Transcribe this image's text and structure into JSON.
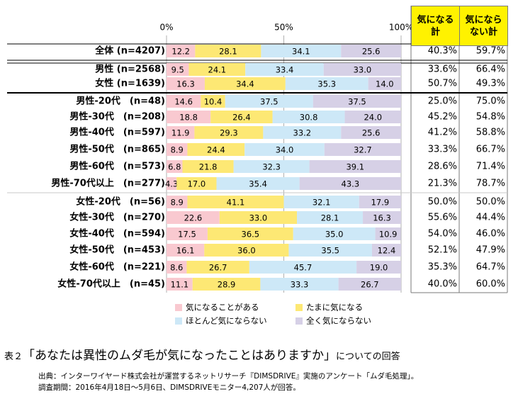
{
  "chart_data": {
    "type": "bar",
    "orientation": "horizontal",
    "stacked": true,
    "percent_stacked": true,
    "axis_ticks": [
      "0%",
      "50%",
      "100%"
    ],
    "xlim": [
      0,
      100
    ],
    "categories": [
      "全体 (n=4207)",
      "男性 (n=2568)",
      "女性 (n=1639)",
      "男性-20代　(n=48)",
      "男性-30代　(n=208)",
      "男性-40代　(n=597)",
      "男性-50代　(n=865)",
      "男性-60代　(n=573)",
      "男性-70代以上　(n=277)",
      "女性-20代　(n=56)",
      "女性-30代　(n=270)",
      "女性-40代　(n=594)",
      "女性-50代　(n=453)",
      "女性-60代　(n=221)",
      "女性-70代以上　(n=45)"
    ],
    "series": [
      {
        "name": "気になることがある",
        "color": "#f9c9d0",
        "values": [
          12.2,
          9.5,
          16.3,
          14.6,
          18.8,
          11.9,
          8.9,
          6.8,
          4.3,
          8.9,
          22.6,
          17.5,
          16.1,
          8.6,
          11.1
        ]
      },
      {
        "name": "たまに気になる",
        "color": "#fde874",
        "values": [
          28.1,
          24.1,
          34.4,
          10.4,
          26.4,
          29.3,
          24.4,
          21.8,
          17.0,
          41.1,
          33.0,
          36.5,
          36.0,
          26.7,
          28.9
        ]
      },
      {
        "name": "ほとんど気にならない",
        "color": "#cde8f7",
        "values": [
          34.1,
          33.4,
          35.3,
          37.5,
          30.8,
          33.2,
          34.0,
          32.3,
          35.4,
          32.1,
          28.1,
          35.0,
          35.5,
          45.7,
          33.3
        ]
      },
      {
        "name": "全く気にならない",
        "color": "#d6d0e6",
        "values": [
          25.6,
          33.0,
          14.0,
          37.5,
          24.0,
          25.6,
          32.7,
          39.1,
          43.3,
          17.9,
          16.3,
          10.9,
          12.4,
          19.0,
          26.7
        ]
      }
    ],
    "table_columns": [
      {
        "header": "気になる\n計",
        "values": [
          "40.3%",
          "33.6%",
          "50.7%",
          "25.0%",
          "45.2%",
          "41.2%",
          "33.3%",
          "28.6%",
          "21.3%",
          "50.0%",
          "55.6%",
          "54.0%",
          "52.1%",
          "35.3%",
          "40.0%"
        ]
      },
      {
        "header": "気になら\nない計",
        "values": [
          "59.7%",
          "66.4%",
          "49.3%",
          "75.0%",
          "54.8%",
          "58.8%",
          "66.7%",
          "71.4%",
          "78.7%",
          "50.0%",
          "44.4%",
          "46.0%",
          "47.9%",
          "64.7%",
          "60.0%"
        ]
      }
    ],
    "legend_position": "bottom"
  },
  "caption": {
    "prefix": "表２",
    "question": "「あなたは異性のムダ毛が気になったことはありますか」",
    "suffix": "についての回答"
  },
  "notes": {
    "source": "出典：インターワイヤード株式会社が運営するネットリサーチ『DIMSDRIVE』実施のアンケート「ムダ毛処理」。",
    "period": "調査期間：2016年4月18日～5月6日、DIMSDRIVEモニター4,207人が回答。"
  }
}
